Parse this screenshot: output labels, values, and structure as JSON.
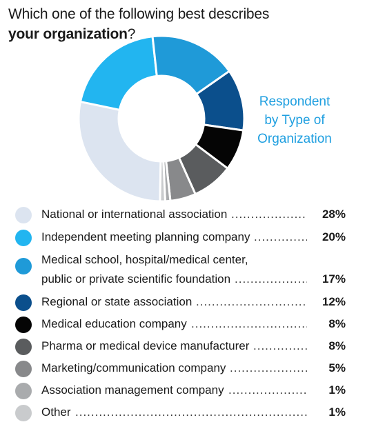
{
  "title": {
    "line1": "Which one of the following best describes",
    "line2_bold": "your organization",
    "line2_rest": "?"
  },
  "chart_data": {
    "type": "pie",
    "donut": true,
    "center_label": [
      "Respondent",
      "by Type of",
      "Organization"
    ],
    "categories": [
      "National or international association",
      "Independent meeting planning company",
      "Medical school, hospital/medical center, public or private scientific foundation",
      "Regional or state association",
      "Medical education company",
      "Pharma or medical device manufacturer",
      "Marketing/communication company",
      "Association management company",
      "Other"
    ],
    "values": [
      28,
      20,
      17,
      12,
      8,
      8,
      5,
      1,
      1
    ],
    "value_labels": [
      "28%",
      "20%",
      "17%",
      "12%",
      "8%",
      "8%",
      "5%",
      "1%",
      "1%"
    ],
    "colors": [
      "#dce4f0",
      "#22b5f0",
      "#1f9ad8",
      "#0b4f8c",
      "#050505",
      "#5a5c5e",
      "#88898b",
      "#a9abad",
      "#c9cbcd"
    ],
    "legend_placement": "bottom"
  },
  "legend": {
    "rows": [
      {
        "lines": [
          "National or international association"
        ],
        "pct": "28%"
      },
      {
        "lines": [
          "Independent meeting planning company"
        ],
        "pct": "20%"
      },
      {
        "lines": [
          "Medical school, hospital/medical center,",
          "public or private scientific foundation"
        ],
        "pct": "17%"
      },
      {
        "lines": [
          "Regional or state association"
        ],
        "pct": "12%"
      },
      {
        "lines": [
          "Medical education company"
        ],
        "pct": "8%"
      },
      {
        "lines": [
          "Pharma or medical device manufacturer"
        ],
        "pct": "8%"
      },
      {
        "lines": [
          "Marketing/communication company"
        ],
        "pct": "5%"
      },
      {
        "lines": [
          "Association management company"
        ],
        "pct": "1%"
      },
      {
        "lines": [
          "Other"
        ],
        "pct": "1%"
      }
    ]
  }
}
